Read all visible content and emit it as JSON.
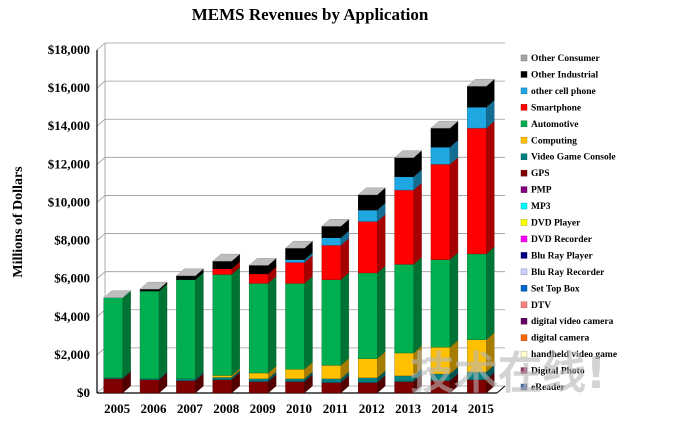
{
  "chart_data": {
    "type": "bar",
    "stacked": true,
    "title": "MEMS Revenues by Application",
    "ylabel": "Millions of Dollars",
    "xlabel": "",
    "ylim": [
      0,
      18000
    ],
    "yticks": [
      0,
      2000,
      4000,
      6000,
      8000,
      10000,
      12000,
      14000,
      16000,
      18000
    ],
    "ytick_labels": [
      "$0",
      "$2,000",
      "$4,000",
      "$6,000",
      "$8,000",
      "$10,000",
      "$12,000",
      "$14,000",
      "$16,000",
      "$18,000"
    ],
    "grid": true,
    "legend_position": "right",
    "categories": [
      "2005",
      "2006",
      "2007",
      "2008",
      "2009",
      "2010",
      "2011",
      "2012",
      "2013",
      "2014",
      "2015"
    ],
    "series": [
      {
        "name": "eReader",
        "color": "#4f6fb0",
        "values": [
          0,
          0,
          0,
          0,
          0,
          0,
          0,
          0,
          0,
          0,
          0
        ]
      },
      {
        "name": "Digital Photo",
        "color": "#993366",
        "values": [
          0,
          0,
          0,
          0,
          0,
          0,
          0,
          0,
          0,
          0,
          0
        ]
      },
      {
        "name": "handheld video game",
        "color": "#ffffcc",
        "values": [
          0,
          0,
          0,
          0,
          0,
          0,
          0,
          0,
          0,
          0,
          0
        ]
      },
      {
        "name": "digital camera",
        "color": "#ff6600",
        "values": [
          0,
          0,
          0,
          0,
          0,
          0,
          0,
          0,
          0,
          0,
          0
        ]
      },
      {
        "name": "digital video camera",
        "color": "#660066",
        "values": [
          0,
          0,
          0,
          0,
          0,
          0,
          0,
          0,
          0,
          0,
          0
        ]
      },
      {
        "name": "DTV",
        "color": "#ff8080",
        "values": [
          0,
          0,
          0,
          0,
          0,
          0,
          0,
          0,
          0,
          0,
          0
        ]
      },
      {
        "name": "Set Top Box",
        "color": "#0066cc",
        "values": [
          0,
          0,
          0,
          0,
          0,
          0,
          0,
          0,
          0,
          0,
          0
        ]
      },
      {
        "name": "Blu Ray Recorder",
        "color": "#ccccff",
        "values": [
          0,
          0,
          0,
          0,
          0,
          0,
          0,
          0,
          0,
          0,
          0
        ]
      },
      {
        "name": "Blu Ray Player",
        "color": "#000080",
        "values": [
          0,
          0,
          0,
          0,
          0,
          0,
          0,
          0,
          0,
          0,
          0
        ]
      },
      {
        "name": "DVD Recorder",
        "color": "#ff00ff",
        "values": [
          0,
          0,
          0,
          0,
          0,
          0,
          0,
          0,
          0,
          0,
          0
        ]
      },
      {
        "name": "DVD Player",
        "color": "#ffff00",
        "values": [
          0,
          0,
          0,
          0,
          0,
          0,
          0,
          0,
          0,
          0,
          0
        ]
      },
      {
        "name": "MP3",
        "color": "#00ffff",
        "values": [
          0,
          0,
          0,
          0,
          0,
          0,
          0,
          0,
          0,
          0,
          0
        ]
      },
      {
        "name": "PMP",
        "color": "#800080",
        "values": [
          0,
          0,
          0,
          0,
          0,
          0,
          0,
          0,
          0,
          0,
          0
        ]
      },
      {
        "name": "GPS",
        "color": "#800000",
        "values": [
          750,
          700,
          650,
          700,
          600,
          600,
          550,
          550,
          600,
          650,
          700
        ]
      },
      {
        "name": "Video Game Console",
        "color": "#008080",
        "values": [
          50,
          50,
          100,
          120,
          150,
          150,
          200,
          250,
          300,
          350,
          400
        ]
      },
      {
        "name": "Computing",
        "color": "#ffc000",
        "values": [
          0,
          0,
          0,
          100,
          300,
          500,
          700,
          1000,
          1200,
          1400,
          1700
        ]
      },
      {
        "name": "Automotive",
        "color": "#00b050",
        "values": [
          4200,
          4600,
          5200,
          5300,
          4700,
          4500,
          4500,
          4500,
          4650,
          4600,
          4500
        ]
      },
      {
        "name": "Smartphone",
        "color": "#ff0000",
        "values": [
          0,
          0,
          0,
          300,
          500,
          1100,
          1800,
          2700,
          3900,
          5000,
          6600
        ]
      },
      {
        "name": "other cell phone",
        "color": "#1ea7e1",
        "values": [
          0,
          0,
          0,
          0,
          0,
          150,
          400,
          600,
          700,
          900,
          1100
        ]
      },
      {
        "name": "Other Industrial",
        "color": "#000000",
        "values": [
          0,
          100,
          200,
          400,
          450,
          600,
          600,
          800,
          1000,
          1000,
          1100
        ]
      },
      {
        "name": "Other Consumer",
        "color": "#a6a6a6",
        "values": [
          0,
          0,
          0,
          0,
          0,
          0,
          0,
          0,
          0,
          0,
          0
        ]
      }
    ],
    "legend_entries": [
      "Other Consumer",
      "Other Industrial",
      "other cell phone",
      "Smartphone",
      "Automotive",
      "Computing",
      "Video Game Console",
      "GPS",
      "PMP",
      "MP3",
      "DVD Player",
      "DVD Recorder",
      "Blu Ray Player",
      "Blu Ray Recorder",
      "Set Top Box",
      "DTV",
      "digital video camera",
      "digital camera",
      "handheld video game",
      "Digital Photo",
      "eReader"
    ],
    "watermark": "技术在线!"
  }
}
